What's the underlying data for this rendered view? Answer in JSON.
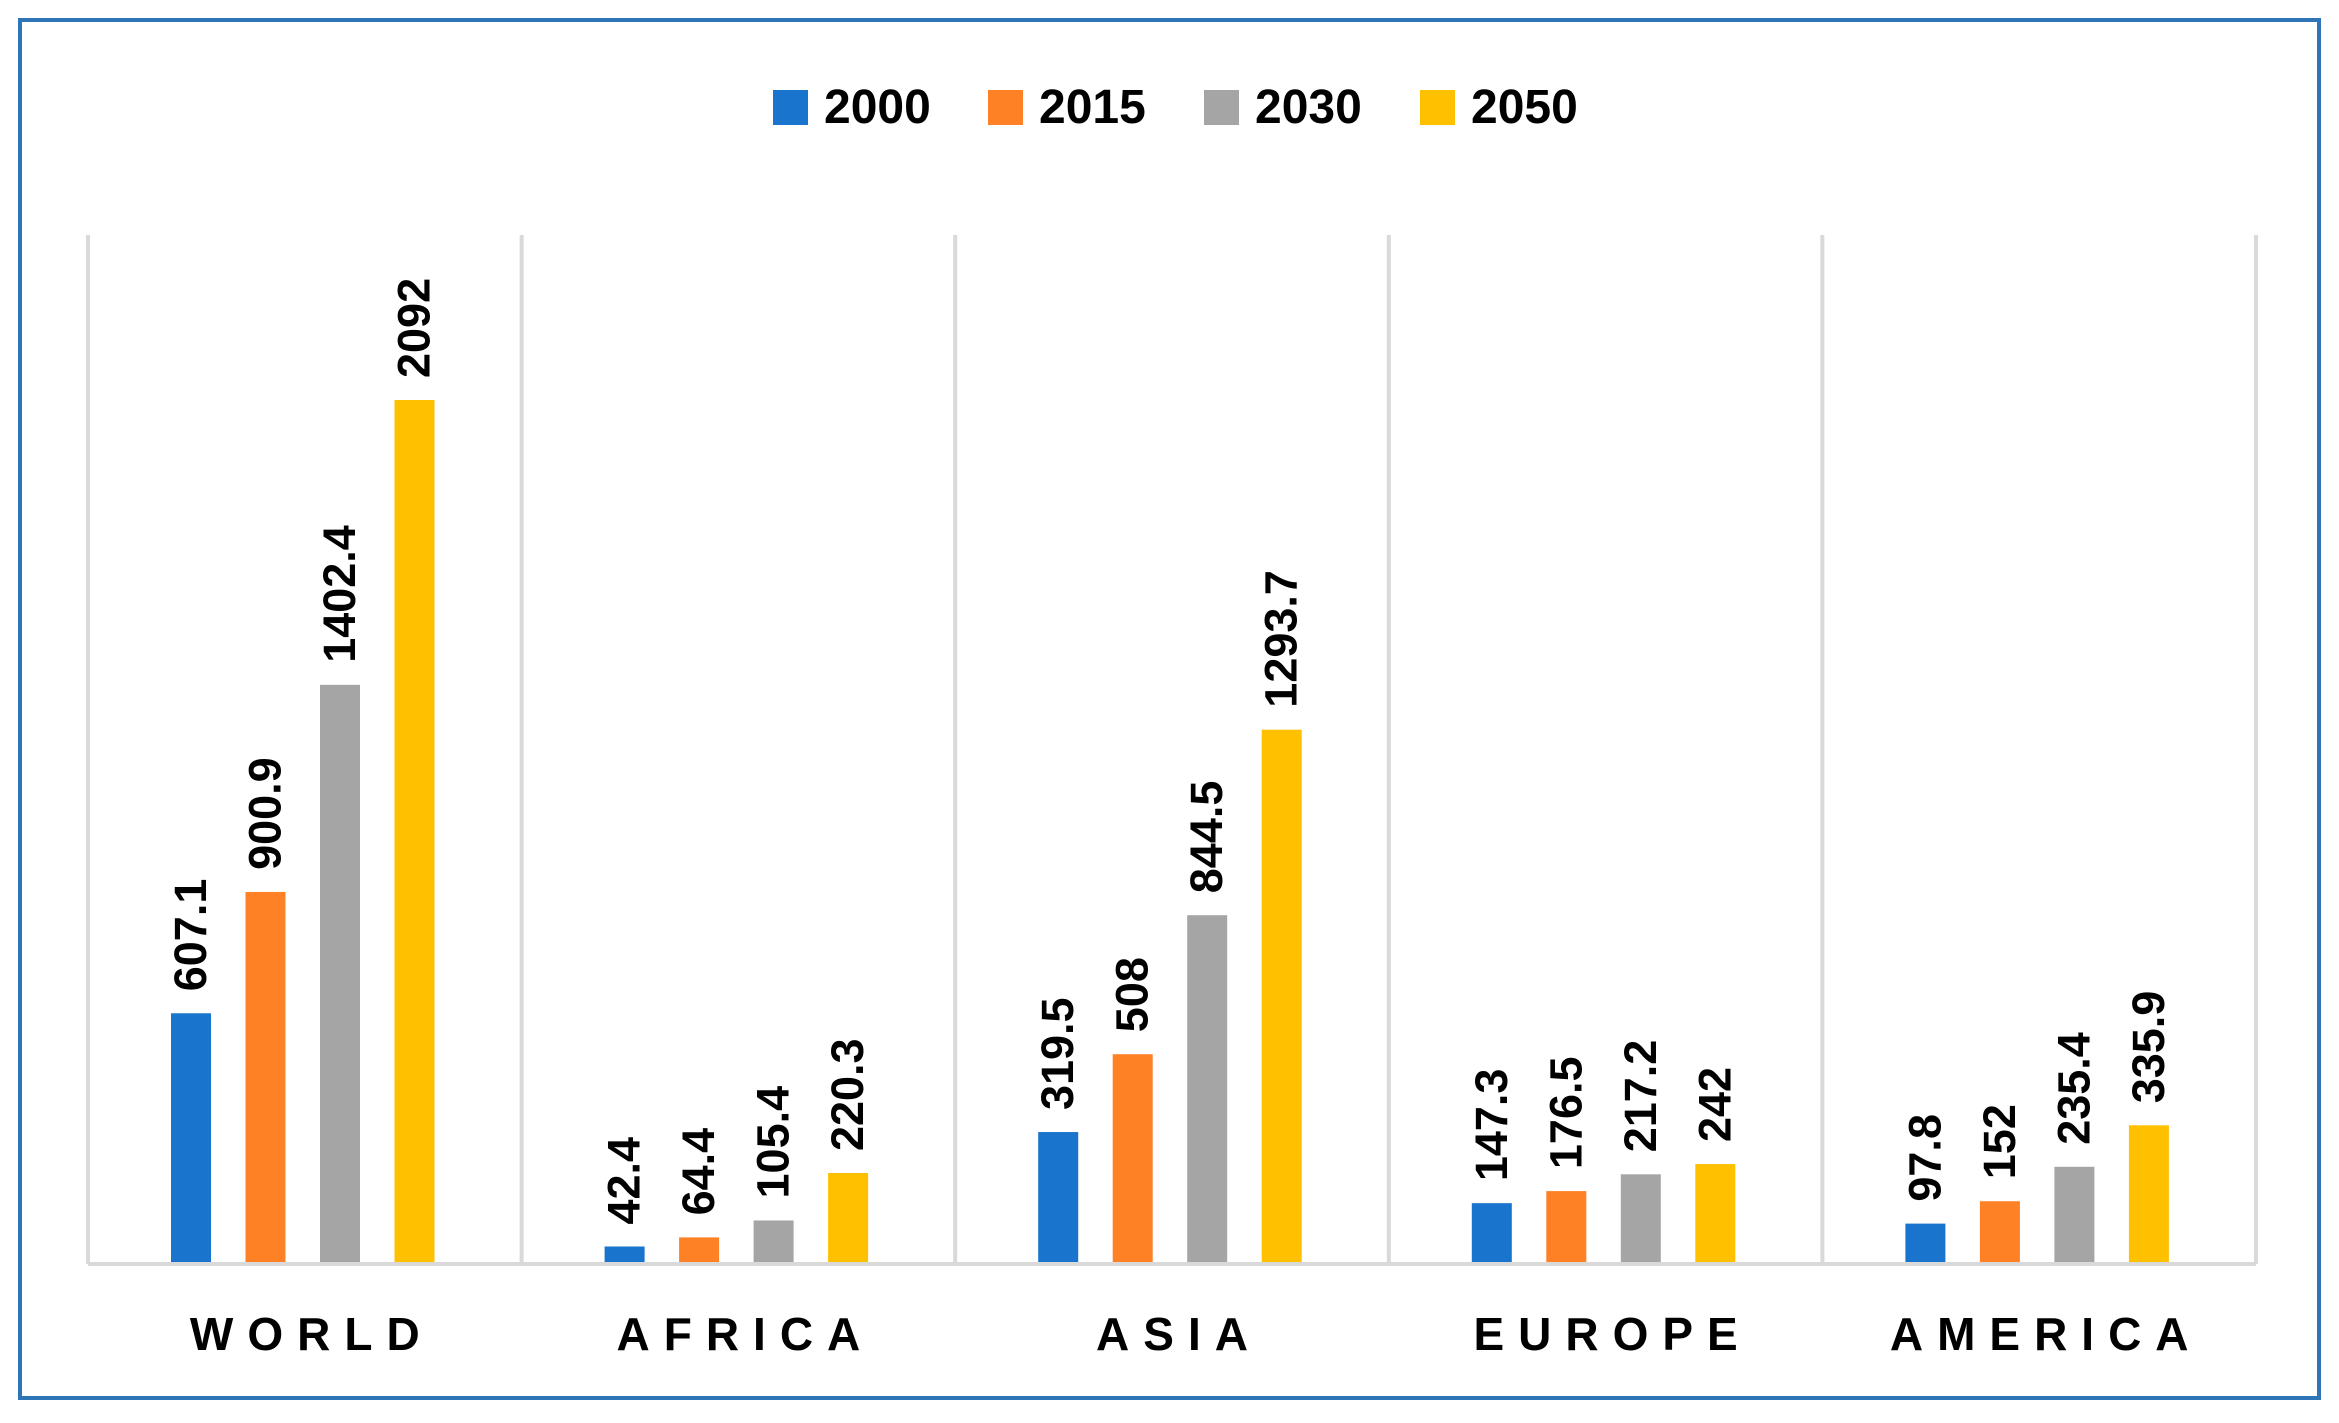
{
  "chart_data": {
    "type": "bar",
    "title": "",
    "xlabel": "",
    "ylabel": "",
    "ylim": [
      0,
      2092
    ],
    "grid": false,
    "legend_position": "top-center",
    "categories": [
      "WORLD",
      "AFRICA",
      "ASIA",
      "EUROPE",
      "AMERICA"
    ],
    "series": [
      {
        "name": "2000",
        "color": "#1874CD",
        "values": [
          607.1,
          42.4,
          319.5,
          147.3,
          97.8
        ],
        "labels": [
          "607.1",
          "42.4",
          "319.5",
          "147.3",
          "97.8"
        ]
      },
      {
        "name": "2015",
        "color": "#FF8126",
        "values": [
          900.9,
          64.4,
          508,
          176.5,
          152
        ],
        "labels": [
          "900.9",
          "64.4",
          "508",
          "176.5",
          "152"
        ]
      },
      {
        "name": "2030",
        "color": "#A5A5A5",
        "values": [
          1402.4,
          105.4,
          844.5,
          217.2,
          235.4
        ],
        "labels": [
          "1402.4",
          "105.4",
          "844.5",
          "217.2",
          "235.4"
        ]
      },
      {
        "name": "2050",
        "color": "#FFC000",
        "values": [
          2092,
          220.3,
          1293.7,
          242,
          335.9
        ],
        "labels": [
          "2092",
          "220.3",
          "1293.7",
          "242",
          "335.9"
        ]
      }
    ],
    "frame_color": "#2E75B6",
    "axis_color": "#D9D9D9"
  }
}
